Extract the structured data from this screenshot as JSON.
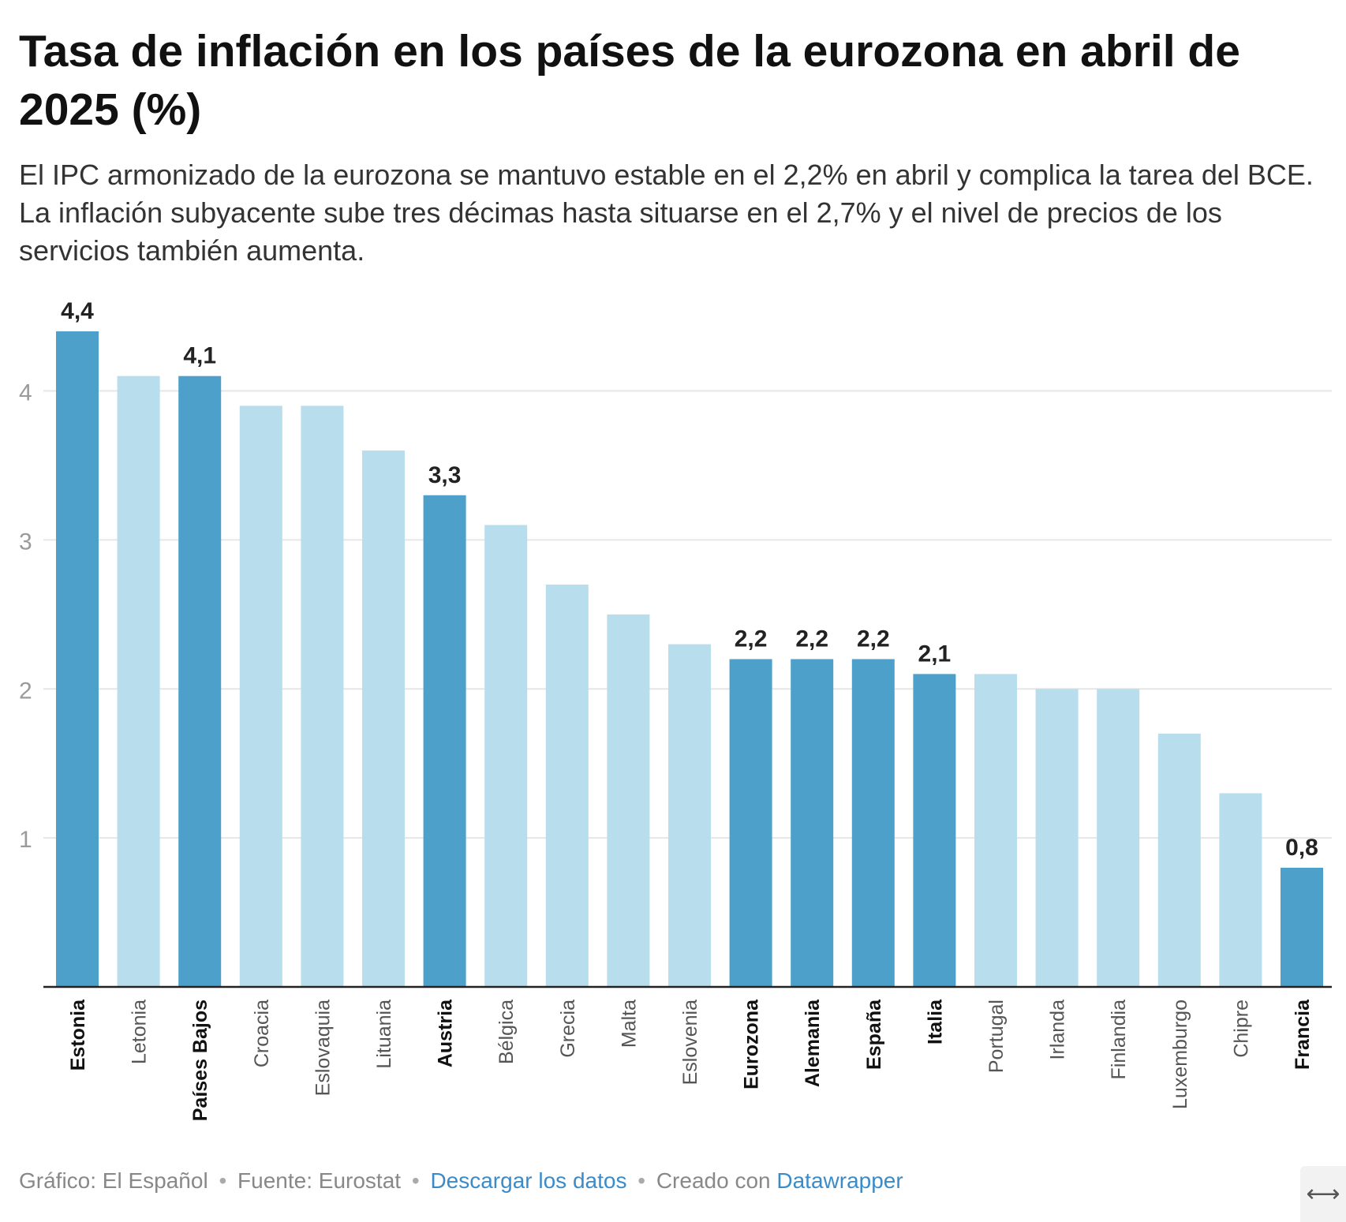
{
  "title": "Tasa de inflación en los países de la eurozona en abril de 2025 (%)",
  "subtitle": "El IPC armonizado de la eurozona se mantuvo estable en el 2,2% en abril y complica la tarea del BCE. La inflación subyacente sube tres décimas hasta situarse en el 2,7% y el nivel de precios de los servicios también aumenta.",
  "colors": {
    "highlight": "#4da0ca",
    "normal": "#b8dded",
    "grid": "#e6e6e6",
    "axis": "#222222",
    "tick": "#9a9a9a",
    "label": "#222222"
  },
  "chart_data": {
    "type": "bar",
    "title": "Tasa de inflación en los países de la eurozona en abril de 2025 (%)",
    "xlabel": "",
    "ylabel": "",
    "ylim": [
      0,
      4.4
    ],
    "yticks": [
      1,
      2,
      3,
      4
    ],
    "grid": true,
    "categories": [
      "Estonia",
      "Letonia",
      "Países Bajos",
      "Croacia",
      "Eslovaquia",
      "Lituania",
      "Austria",
      "Bélgica",
      "Grecia",
      "Malta",
      "Eslovenia",
      "Eurozona",
      "Alemania",
      "España",
      "Italia",
      "Portugal",
      "Irlanda",
      "Finlandia",
      "Luxemburgo",
      "Chipre",
      "Francia"
    ],
    "values": [
      4.4,
      4.1,
      4.1,
      3.9,
      3.9,
      3.6,
      3.3,
      3.1,
      2.7,
      2.5,
      2.3,
      2.2,
      2.2,
      2.2,
      2.1,
      2.1,
      2.0,
      2.0,
      1.7,
      1.3,
      0.8
    ],
    "highlighted": [
      true,
      false,
      true,
      false,
      false,
      false,
      true,
      false,
      false,
      false,
      false,
      true,
      true,
      true,
      true,
      false,
      false,
      false,
      false,
      false,
      true
    ],
    "data_labels": [
      "4,4",
      "",
      "4,1",
      "",
      "",
      "",
      "3,3",
      "",
      "",
      "",
      "",
      "2,2",
      "2,2",
      "2,2",
      "2,1",
      "",
      "",
      "",
      "",
      "",
      "0,8"
    ]
  },
  "footer": {
    "credit": "Gráfico: El Español",
    "source": "Fuente: Eurostat",
    "download_link": "Descargar los datos",
    "created_with": "Creado con",
    "tool_link": "Datawrapper",
    "separator": "•"
  },
  "expand_icon": {
    "icon": "expand-horizontal-icon",
    "glyph": "⟷"
  }
}
